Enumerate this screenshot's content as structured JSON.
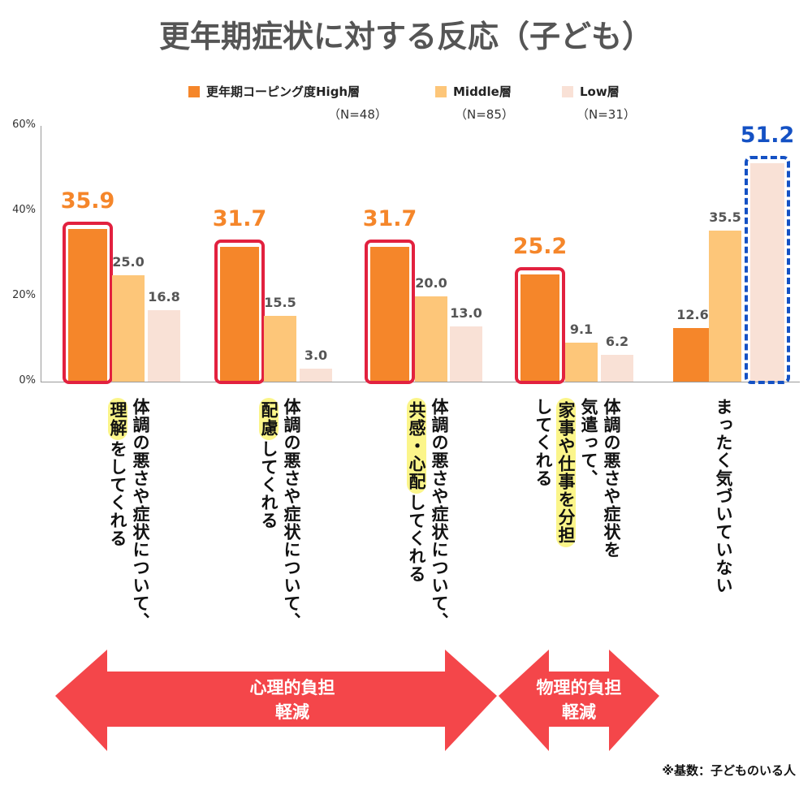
{
  "title": "更年期症状に対する反応（子ども）",
  "legend": [
    {
      "label": "更年期コーピング度High層",
      "n": "（N=48）",
      "color": "#f5862a"
    },
    {
      "label": "Middle層",
      "n": "（N=85）",
      "color": "#fdc679"
    },
    {
      "label": "Low層",
      "n": "（N=31）",
      "color": "#f9e1d6"
    }
  ],
  "footnote": "※基数：子どものいる人",
  "arrows": [
    {
      "line1": "心理的負担",
      "line2": "軽減",
      "color": "#f4464a"
    },
    {
      "line1": "物理的負担",
      "line2": "軽減",
      "color": "#f4464a"
    }
  ],
  "category_labels": [
    [
      [
        {
          "t": "体調の悪さや症状について、"
        }
      ],
      [
        {
          "t": "理解",
          "hl": true
        },
        {
          "t": "をしてくれる"
        }
      ]
    ],
    [
      [
        {
          "t": "体調の悪さや症状について、"
        }
      ],
      [
        {
          "t": "配慮",
          "hl": true
        },
        {
          "t": "してくれる"
        }
      ]
    ],
    [
      [
        {
          "t": "体調の悪さや症状について、"
        }
      ],
      [
        {
          "t": "共感・心配",
          "hl": true
        },
        {
          "t": "してくれる"
        }
      ]
    ],
    [
      [
        {
          "t": "体調の悪さや症状を"
        }
      ],
      [
        {
          "t": "気遣って、"
        }
      ],
      [
        {
          "t": "家事や仕事を分担",
          "hl": true
        }
      ],
      [
        {
          "t": "してくれる"
        }
      ]
    ],
    [
      [
        {
          "t": "まったく気づいていない"
        }
      ]
    ]
  ],
  "chart_data": {
    "type": "bar",
    "categories": [
      "体調の悪さや症状について、理解をしてくれる",
      "体調の悪さや症状について、配慮してくれる",
      "体調の悪さや症状について、共感・心配してくれる",
      "体調の悪さや症状を気遣って、家事や仕事を分担してくれる",
      "まったく気づいていない"
    ],
    "series": [
      {
        "name": "更年期コーピング度High層",
        "values": [
          35.9,
          31.7,
          31.7,
          25.2,
          12.6
        ]
      },
      {
        "name": "Middle層",
        "values": [
          25.0,
          15.5,
          20.0,
          9.1,
          35.5
        ]
      },
      {
        "name": "Low層",
        "values": [
          16.8,
          3.0,
          13.0,
          6.2,
          51.2
        ]
      }
    ],
    "value_labels": [
      [
        "35.9",
        "25.0",
        "16.8"
      ],
      [
        "31.7",
        "15.5",
        "3.0"
      ],
      [
        "31.7",
        "20.0",
        "13.0"
      ],
      [
        "25.2",
        "9.1",
        "6.2"
      ],
      [
        "12.6",
        "35.5",
        "51.2"
      ]
    ],
    "highlighted": [
      [
        0,
        0,
        "red"
      ],
      [
        1,
        0,
        "red"
      ],
      [
        2,
        0,
        "red"
      ],
      [
        3,
        0,
        "red"
      ],
      [
        4,
        2,
        "blue"
      ]
    ],
    "yticks": [
      "0%",
      "20%",
      "40%",
      "60%"
    ],
    "ylim": [
      0,
      60
    ],
    "grid": false
  }
}
